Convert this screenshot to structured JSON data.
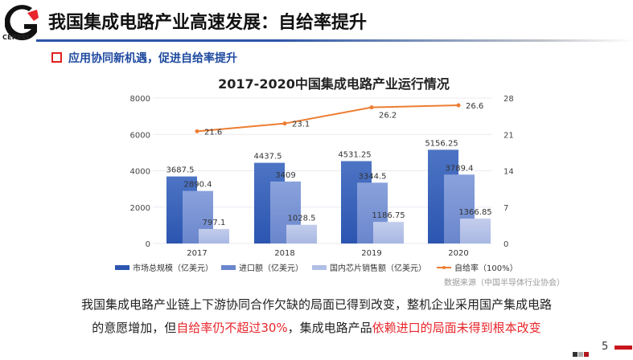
{
  "logo": {
    "text": "CEPREI"
  },
  "header": {
    "title": "我国集成电路产业高速发展：自给率提升",
    "subtitle": "应用协同新机遇，促进自给率提升"
  },
  "chart_data": {
    "type": "bar",
    "title": "2017-2020中国集成电路产业运行情况",
    "categories": [
      "2017",
      "2018",
      "2019",
      "2020"
    ],
    "series": [
      {
        "name": "市场总规模（亿美元）",
        "type": "bar",
        "axis": "left",
        "values": [
          3687.5,
          4437.5,
          4531.25,
          5156.25
        ],
        "labels": [
          "3687.5",
          "4437.5",
          "4531.25",
          "5156.25"
        ],
        "color": "#2f5bb5"
      },
      {
        "name": "进口额（亿美元）",
        "type": "bar",
        "axis": "left",
        "values": [
          2890.4,
          3409,
          3344.5,
          3789.4
        ],
        "labels": [
          "2890.4",
          "3409",
          "3344.5",
          "3789.4"
        ],
        "color": "#6f8fd2"
      },
      {
        "name": "国内芯片销售额（亿美元）",
        "type": "bar",
        "axis": "left",
        "values": [
          797.1,
          1028.5,
          1186.75,
          1366.85
        ],
        "labels": [
          "797.1",
          "1028.5",
          "1186.75",
          "1366.85"
        ],
        "color": "#b0bfe6"
      },
      {
        "name": "自给率（100%）",
        "type": "line",
        "axis": "right",
        "values": [
          21.6,
          23.1,
          26.2,
          26.6
        ],
        "labels": [
          "21.6",
          "23.1",
          "26.2",
          "26.6"
        ],
        "color": "#ed7d31"
      }
    ],
    "yleft": {
      "ticks": [
        "0",
        "2000",
        "4000",
        "6000",
        "8000"
      ],
      "range": [
        0,
        8000
      ]
    },
    "yright": {
      "ticks": [
        "0",
        "7",
        "14",
        "21",
        "28"
      ],
      "range": [
        0,
        28
      ]
    },
    "grid": true,
    "legend": "bottom"
  },
  "source": "数据来源（中国半导体行业协会）",
  "body": {
    "line1": "我国集成电路产业链上下游协同合作欠缺的局面已得到改变，整机企业采用国产集成电路",
    "line2_a": "的意愿增加，但",
    "line2_b": "自给率仍不超过30%",
    "line2_c": "，集成电路产品",
    "line2_d": "依赖进口的局面未得到根本改变"
  },
  "footer": {
    "page": "5"
  }
}
